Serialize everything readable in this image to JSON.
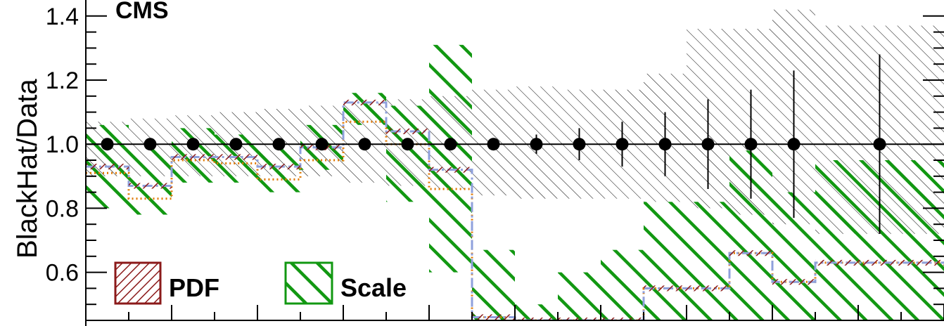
{
  "chart_data": {
    "type": "line",
    "label": "CMS",
    "ylabel": "BlackHat/Data",
    "xlabel": "",
    "ylim": [
      0.45,
      1.45
    ],
    "yticks": [
      "0.6",
      "0.8",
      "1.0",
      "1.2",
      "1.4"
    ],
    "y_tick_values": [
      0.6,
      0.8,
      1.0,
      1.2,
      1.4
    ],
    "bins": 20,
    "legend": [
      {
        "name": "PDF",
        "color": "#8b1a1a"
      },
      {
        "name": "Scale",
        "color": "#129812"
      }
    ],
    "colors": {
      "pdf": "#8b1a1a",
      "scale": "#129812",
      "dotted": "#e07800",
      "dashdot": "#8fa0dc",
      "data_band": "#000000"
    },
    "data_points": [
      {
        "x": 1,
        "y": 1.0,
        "err": 0.0
      },
      {
        "x": 2,
        "y": 1.0,
        "err": 0.0
      },
      {
        "x": 3,
        "y": 1.0,
        "err": 0.0
      },
      {
        "x": 4,
        "y": 1.0,
        "err": 0.0
      },
      {
        "x": 5,
        "y": 1.0,
        "err": 0.0
      },
      {
        "x": 6,
        "y": 1.0,
        "err": 0.0
      },
      {
        "x": 7,
        "y": 1.0,
        "err": 0.0
      },
      {
        "x": 8,
        "y": 1.0,
        "err": 0.0
      },
      {
        "x": 9,
        "y": 1.0,
        "err": 0.0
      },
      {
        "x": 10,
        "y": 1.0,
        "err": 0.0
      },
      {
        "x": 11,
        "y": 1.0,
        "err": 0.03
      },
      {
        "x": 12,
        "y": 1.0,
        "err": 0.05
      },
      {
        "x": 13,
        "y": 1.0,
        "err": 0.07
      },
      {
        "x": 14,
        "y": 1.0,
        "err": 0.1
      },
      {
        "x": 15,
        "y": 1.0,
        "err": 0.14
      },
      {
        "x": 16,
        "y": 1.0,
        "err": 0.17
      },
      {
        "x": 17,
        "y": 1.0,
        "err": 0.23
      },
      {
        "x": 19,
        "y": 1.0,
        "err": 0.28
      }
    ],
    "data_band": [
      {
        "x0": 0.5,
        "x1": 1.5,
        "lo": 0.9,
        "hi": 1.07
      },
      {
        "x0": 1.5,
        "x1": 2.5,
        "lo": 0.9,
        "hi": 1.08
      },
      {
        "x0": 2.5,
        "x1": 3.5,
        "lo": 0.9,
        "hi": 1.09
      },
      {
        "x0": 3.5,
        "x1": 4.5,
        "lo": 0.9,
        "hi": 1.1
      },
      {
        "x0": 4.5,
        "x1": 5.5,
        "lo": 0.9,
        "hi": 1.11
      },
      {
        "x0": 5.5,
        "x1": 6.5,
        "lo": 0.9,
        "hi": 1.12
      },
      {
        "x0": 6.5,
        "x1": 7.5,
        "lo": 0.88,
        "hi": 1.13
      },
      {
        "x0": 7.5,
        "x1": 8.5,
        "lo": 0.87,
        "hi": 1.14
      },
      {
        "x0": 8.5,
        "x1": 9.5,
        "lo": 0.86,
        "hi": 1.15
      },
      {
        "x0": 9.5,
        "x1": 10.5,
        "lo": 0.84,
        "hi": 1.17
      },
      {
        "x0": 10.5,
        "x1": 11.5,
        "lo": 0.83,
        "hi": 1.18
      },
      {
        "x0": 11.5,
        "x1": 12.5,
        "lo": 0.83,
        "hi": 1.17
      },
      {
        "x0": 12.5,
        "x1": 13.5,
        "lo": 0.83,
        "hi": 1.17
      },
      {
        "x0": 13.5,
        "x1": 14.5,
        "lo": 0.82,
        "hi": 1.22
      },
      {
        "x0": 14.5,
        "x1": 15.5,
        "lo": 0.8,
        "hi": 1.36
      },
      {
        "x0": 15.5,
        "x1": 16.5,
        "lo": 0.78,
        "hi": 1.36
      },
      {
        "x0": 16.5,
        "x1": 17.5,
        "lo": 0.75,
        "hi": 1.42
      },
      {
        "x0": 17.5,
        "x1": 20.5,
        "lo": 0.72,
        "hi": 1.37
      }
    ],
    "theory": [
      0.93,
      0.87,
      0.96,
      0.96,
      0.93,
      0.99,
      1.13,
      1.04,
      0.92,
      0.46,
      0.45,
      0.45,
      0.45,
      0.55,
      0.55,
      0.66,
      0.57,
      0.63,
      0.63,
      0.63
    ],
    "theory_alt": [
      0.91,
      0.83,
      0.95,
      0.94,
      0.89,
      0.95,
      1.07,
      1.0,
      0.86,
      0.46,
      0.45,
      0.45,
      0.45,
      0.55,
      0.55,
      0.66,
      0.57,
      0.63,
      0.63,
      0.63
    ],
    "scale_band": [
      {
        "x0": 0.5,
        "x1": 1.5,
        "lo": 0.8,
        "hi": 1.06
      },
      {
        "x0": 1.5,
        "x1": 2.5,
        "lo": 0.78,
        "hi": 1.0
      },
      {
        "x0": 2.5,
        "x1": 3.5,
        "lo": 0.88,
        "hi": 1.05
      },
      {
        "x0": 3.5,
        "x1": 4.5,
        "lo": 0.88,
        "hi": 1.03
      },
      {
        "x0": 4.5,
        "x1": 5.5,
        "lo": 0.85,
        "hi": 1.0
      },
      {
        "x0": 5.5,
        "x1": 6.5,
        "lo": 0.92,
        "hi": 1.06
      },
      {
        "x0": 6.5,
        "x1": 7.5,
        "lo": 1.06,
        "hi": 1.16
      },
      {
        "x0": 7.5,
        "x1": 8.5,
        "lo": 0.82,
        "hi": 1.12
      },
      {
        "x0": 8.5,
        "x1": 9.5,
        "lo": 0.6,
        "hi": 1.31
      },
      {
        "x0": 9.5,
        "x1": 10.5,
        "lo": 0.45,
        "hi": 0.67
      },
      {
        "x0": 10.5,
        "x1": 11.5,
        "lo": 0.45,
        "hi": 0.5
      },
      {
        "x0": 11.5,
        "x1": 12.5,
        "lo": 0.45,
        "hi": 0.6
      },
      {
        "x0": 12.5,
        "x1": 13.5,
        "lo": 0.45,
        "hi": 0.67
      },
      {
        "x0": 13.5,
        "x1": 14.5,
        "lo": 0.45,
        "hi": 0.82
      },
      {
        "x0": 14.5,
        "x1": 15.5,
        "lo": 0.45,
        "hi": 0.82
      },
      {
        "x0": 15.5,
        "x1": 16.5,
        "lo": 0.45,
        "hi": 0.98
      },
      {
        "x0": 16.5,
        "x1": 17.5,
        "lo": 0.45,
        "hi": 0.85
      },
      {
        "x0": 17.5,
        "x1": 20.5,
        "lo": 0.45,
        "hi": 0.95
      }
    ]
  }
}
